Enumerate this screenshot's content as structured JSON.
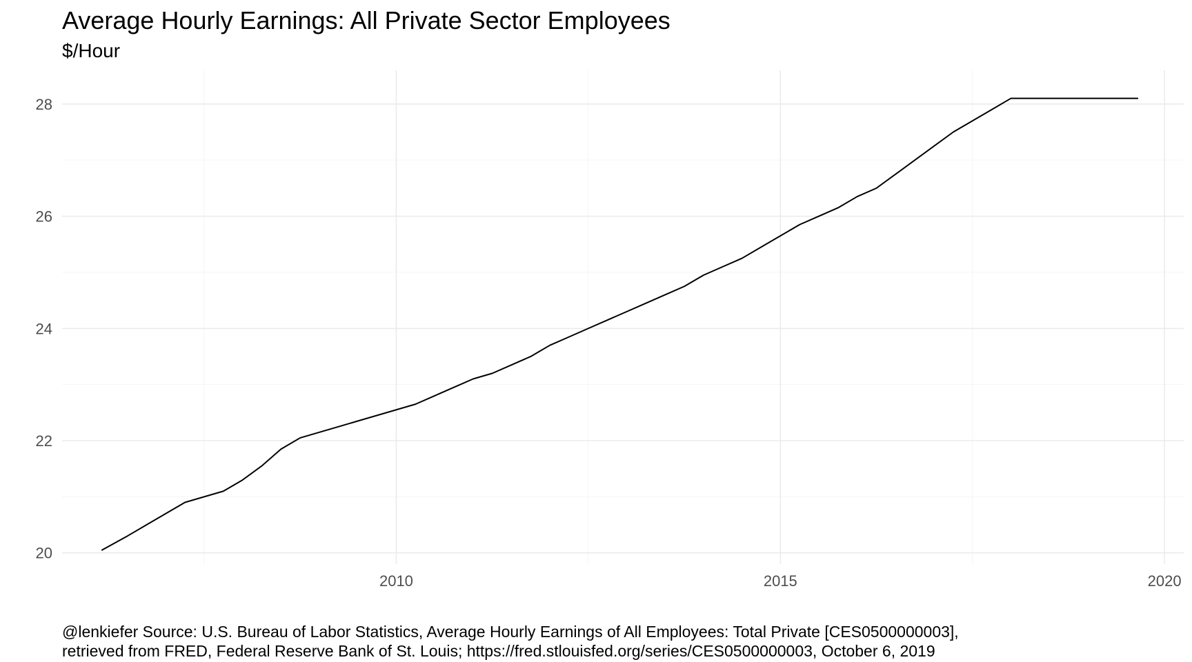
{
  "title": "Average Hourly Earnings: All Private Sector Employees",
  "subtitle": "$/Hour",
  "caption": {
    "line1": "@lenkiefer Source: U.S. Bureau of Labor Statistics, Average Hourly Earnings of All Employees: Total Private [CES0500000003],",
    "line2": "retrieved from FRED, Federal Reserve Bank of St. Louis; https://fred.stlouisfed.org/series/CES0500000003, October 6, 2019"
  },
  "colors": {
    "background": "#ffffff",
    "grid_major": "#ebebeb",
    "grid_minor": "#f5f5f5",
    "line": "#000000",
    "tick_text": "#4d4d4d"
  },
  "chart_data": {
    "type": "line",
    "x_unit": "year (decimal)",
    "xlim": [
      2005.65,
      2020.25
    ],
    "ylim": [
      19.8,
      28.6
    ],
    "x_ticks": [
      2010,
      2015,
      2020
    ],
    "x_minor_ticks": [
      2007.5,
      2012.5,
      2017.5
    ],
    "y_ticks": [
      20,
      22,
      24,
      26,
      28
    ],
    "y_minor_ticks": [
      21,
      23,
      25,
      27
    ],
    "x_tick_labels": [
      "2010",
      "2015",
      "2020"
    ],
    "y_tick_labels": [
      "20",
      "22",
      "24",
      "26",
      "28"
    ],
    "grid": true,
    "series": [
      {
        "x": [
          2006.17,
          2006.5,
          2006.75,
          2007.0,
          2007.25,
          2007.5,
          2007.75,
          2008.0,
          2008.25,
          2008.5,
          2008.75,
          2009.0,
          2009.25,
          2009.5,
          2009.75,
          2010.0,
          2010.25,
          2010.5,
          2010.75,
          2011.0,
          2011.25,
          2011.5,
          2011.75,
          2012.0,
          2012.25,
          2012.5,
          2012.75,
          2013.0,
          2013.25,
          2013.5,
          2013.75,
          2014.0,
          2014.25,
          2014.5,
          2014.75,
          2015.0,
          2015.25,
          2015.5,
          2015.75,
          2016.0,
          2016.25,
          2016.5,
          2016.75,
          2017.0,
          2017.25,
          2017.5,
          2017.75,
          2018.0,
          2018.25,
          2018.5,
          2018.75,
          2019.0,
          2019.25,
          2019.5,
          2019.65
        ],
        "y": [
          20.05,
          20.3,
          20.5,
          20.7,
          20.9,
          21.0,
          21.1,
          21.3,
          21.55,
          21.85,
          22.05,
          22.15,
          22.25,
          22.35,
          22.45,
          22.55,
          22.65,
          22.8,
          22.95,
          23.1,
          23.2,
          23.35,
          23.5,
          23.7,
          23.85,
          24.0,
          24.15,
          24.3,
          24.45,
          24.6,
          24.75,
          24.95,
          25.1,
          25.25,
          25.45,
          25.65,
          25.85,
          26.0,
          26.15,
          26.35,
          26.5,
          26.75,
          27.0,
          27.25,
          27.5,
          27.7,
          27.9,
          28.1,
          28.1,
          28.1,
          28.1,
          28.1,
          28.1,
          28.1,
          28.1
        ]
      }
    ]
  }
}
